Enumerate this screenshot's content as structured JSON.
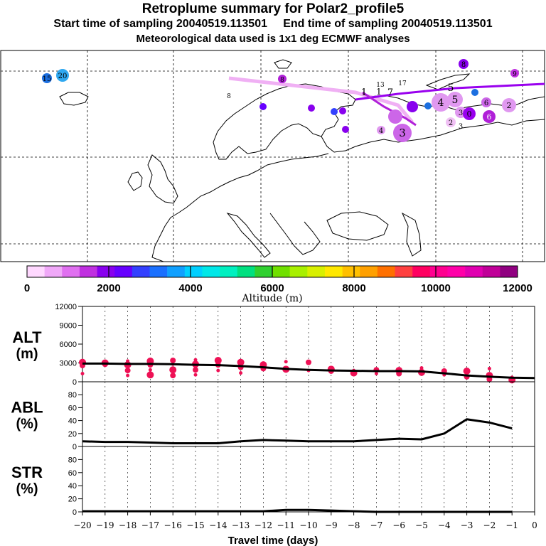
{
  "title": {
    "line1": "Retroplume summary for Polar2_profile5",
    "line2": "Start time of sampling 20040519.113501     End time of sampling 20040519.113501",
    "line3": "Meteorological data used is 1x1 deg ECMWF analyses"
  },
  "map": {
    "region": "Europe and northern Atlantic",
    "track_color": "#9900ee",
    "plume_labels": [
      {
        "text": "15",
        "color": "#1c6fe0"
      },
      {
        "text": "20",
        "color": "#30a8f0"
      },
      {
        "text": "8",
        "color": "#cc44ee"
      },
      {
        "text": "8",
        "color": "#cc44ee"
      },
      {
        "text": "8",
        "color": "#b020d8"
      },
      {
        "text": "9",
        "color": "#b020d8"
      },
      {
        "text": "13",
        "color": "#3a50e0"
      },
      {
        "text": "17",
        "color": "#3a50e0"
      },
      {
        "text": "1",
        "color": "#ffffff"
      },
      {
        "text": "1",
        "color": "#ffffff"
      },
      {
        "text": "7",
        "color": "#ffffff"
      },
      {
        "text": "5",
        "color": "#ffffff"
      },
      {
        "text": "4",
        "color": "#e098f0"
      },
      {
        "text": "5",
        "color": "#e098f0"
      },
      {
        "text": "3",
        "color": "#cc66e8"
      },
      {
        "text": "4",
        "color": "#e098f0"
      },
      {
        "text": "3",
        "color": "#e098f0"
      },
      {
        "text": "2",
        "color": "#f0c0f4"
      },
      {
        "text": "3",
        "color": "#f0c0f4"
      },
      {
        "text": "6",
        "color": "#cc66e8"
      },
      {
        "text": "6",
        "color": "#b020d8"
      },
      {
        "text": "2",
        "color": "#e098f0"
      },
      {
        "text": "0",
        "color": "#9900ee"
      }
    ]
  },
  "colorbar": {
    "label": "Altitude (m)",
    "ticks": [
      "0",
      "2000",
      "4000",
      "6000",
      "8000",
      "10000",
      "12000"
    ],
    "colors": [
      "#ffd8ff",
      "#f0a8f8",
      "#e070f0",
      "#c030e0",
      "#8800ee",
      "#6600ff",
      "#3340ff",
      "#1a70ff",
      "#10a0ff",
      "#00d0ff",
      "#00e8e8",
      "#00f0c0",
      "#00e080",
      "#30d030",
      "#70e000",
      "#a8f000",
      "#d8f000",
      "#ffe800",
      "#ffc000",
      "#ffa000",
      "#ff7000",
      "#ff4040",
      "#ff0060",
      "#ff0090",
      "#ff00a8",
      "#e000b0",
      "#c00098",
      "#900080"
    ]
  },
  "chart_data": [
    {
      "type": "line",
      "panel": "ALT",
      "ylabel": "ALT\n(m)",
      "ylabel_line1": "ALT",
      "ylabel_line2": "(m)",
      "ylim": [
        0,
        12000
      ],
      "yticks": [
        "0",
        "3000",
        "6000",
        "9000",
        "12000"
      ],
      "x": [
        -20,
        -19,
        -18,
        -17,
        -16,
        -15,
        -14,
        -13,
        -12,
        -11,
        -10,
        -9,
        -8,
        -7,
        -6,
        -5,
        -4,
        -3,
        -2,
        -1,
        0
      ],
      "series": [
        {
          "name": "mean altitude",
          "values": [
            2900,
            2900,
            2850,
            2850,
            2800,
            2700,
            2650,
            2500,
            2300,
            2050,
            1900,
            1800,
            1750,
            1700,
            1700,
            1650,
            1350,
            1000,
            800,
            650,
            600
          ]
        }
      ],
      "scatter": [
        {
          "x": -20,
          "y": 3100
        },
        {
          "x": -20,
          "y": 2600
        },
        {
          "x": -20,
          "y": 1300
        },
        {
          "x": -19,
          "y": 3000
        },
        {
          "x": -19,
          "y": 2800
        },
        {
          "x": -18,
          "y": 3300
        },
        {
          "x": -18,
          "y": 2700
        },
        {
          "x": -18,
          "y": 1800
        },
        {
          "x": -18,
          "y": 1000
        },
        {
          "x": -17,
          "y": 3300
        },
        {
          "x": -17,
          "y": 2700
        },
        {
          "x": -17,
          "y": 1900
        },
        {
          "x": -17,
          "y": 1100
        },
        {
          "x": -16,
          "y": 3400
        },
        {
          "x": -16,
          "y": 2800
        },
        {
          "x": -16,
          "y": 1900
        },
        {
          "x": -16,
          "y": 1000
        },
        {
          "x": -15,
          "y": 3500
        },
        {
          "x": -15,
          "y": 2800
        },
        {
          "x": -15,
          "y": 1900
        },
        {
          "x": -15,
          "y": 1100
        },
        {
          "x": -14,
          "y": 3400
        },
        {
          "x": -14,
          "y": 2700
        },
        {
          "x": -14,
          "y": 1800
        },
        {
          "x": -13,
          "y": 3100
        },
        {
          "x": -13,
          "y": 2300
        },
        {
          "x": -13,
          "y": 1400
        },
        {
          "x": -12,
          "y": 2700
        },
        {
          "x": -12,
          "y": 2100
        },
        {
          "x": -11,
          "y": 3200
        },
        {
          "x": -11,
          "y": 2000
        },
        {
          "x": -10,
          "y": 3100
        },
        {
          "x": -10,
          "y": 1800
        },
        {
          "x": -9,
          "y": 2000
        },
        {
          "x": -9,
          "y": 1700
        },
        {
          "x": -8,
          "y": 1800
        },
        {
          "x": -8,
          "y": 1400
        },
        {
          "x": -7,
          "y": 1900
        },
        {
          "x": -7,
          "y": 1300
        },
        {
          "x": -6,
          "y": 1800
        },
        {
          "x": -6,
          "y": 1300
        },
        {
          "x": -5,
          "y": 2200
        },
        {
          "x": -5,
          "y": 1500
        },
        {
          "x": -4,
          "y": 1700
        },
        {
          "x": -4,
          "y": 1100
        },
        {
          "x": -3,
          "y": 1700
        },
        {
          "x": -3,
          "y": 800
        },
        {
          "x": -2,
          "y": 2100
        },
        {
          "x": -2,
          "y": 1000
        },
        {
          "x": -2,
          "y": 400
        },
        {
          "x": -1,
          "y": 700
        },
        {
          "x": -1,
          "y": 300
        }
      ],
      "scatter_color": "#ee1155"
    },
    {
      "type": "line",
      "panel": "ABL",
      "ylabel": "ABL\n(%)",
      "ylabel_line1": "ABL",
      "ylabel_line2": "(%)",
      "ylim": [
        0,
        100
      ],
      "yticks": [
        "0",
        "20",
        "40",
        "60",
        "80"
      ],
      "x": [
        -20,
        -19,
        -18,
        -17,
        -16,
        -15,
        -14,
        -13,
        -12,
        -11,
        -10,
        -9,
        -8,
        -7,
        -6,
        -5,
        -4,
        -3,
        -2,
        -1
      ],
      "series": [
        {
          "name": "ABL fraction",
          "values": [
            8,
            7,
            7,
            6,
            5,
            5,
            5,
            8,
            10,
            9,
            8,
            8,
            8,
            10,
            12,
            11,
            20,
            42,
            37,
            28
          ]
        }
      ]
    },
    {
      "type": "line",
      "panel": "STR",
      "ylabel": "STR\n(%)",
      "ylabel_line1": "STR",
      "ylabel_line2": "(%)",
      "ylim": [
        0,
        100
      ],
      "yticks": [
        "0",
        "20",
        "40",
        "60",
        "80"
      ],
      "x": [
        -20,
        -19,
        -18,
        -17,
        -16,
        -15,
        -14,
        -13,
        -12,
        -11,
        -10,
        -9,
        -8,
        -7,
        -6,
        -5,
        -4,
        -3,
        -2,
        -1
      ],
      "series": [
        {
          "name": "stratospheric fraction",
          "values": [
            1,
            1,
            1,
            1,
            1,
            1,
            1,
            1,
            1,
            3,
            3,
            2,
            1,
            0,
            0,
            0,
            0,
            0,
            0,
            0
          ]
        }
      ],
      "xlabel": "Travel time (days)",
      "xticks": [
        "−20",
        "−19",
        "−18",
        "−17",
        "−16",
        "−15",
        "−14",
        "−13",
        "−12",
        "−11",
        "−10",
        "−9",
        "−8",
        "−7",
        "−6",
        "−5",
        "−4",
        "−3",
        "−2",
        "−1",
        "0"
      ]
    }
  ]
}
